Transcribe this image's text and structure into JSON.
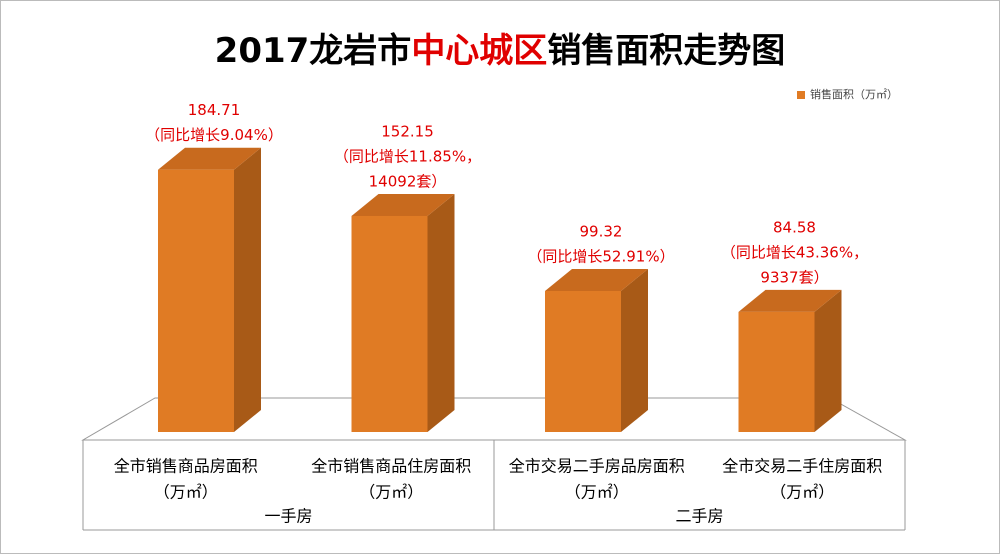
{
  "chart_data": {
    "type": "bar3d",
    "title": [
      "2017龙岩市",
      "中心城区",
      "销售面积走势图"
    ],
    "title_colors": [
      "#000000",
      "#e00000",
      "#000000"
    ],
    "categories": [
      [
        "全市销售商品房面积",
        "（万㎡）"
      ],
      [
        "全市销售商品住房面积",
        "（万㎡）"
      ],
      [
        "全市交易二手房品房面积",
        "（万㎡）"
      ],
      [
        "全市交易二手住房面积",
        "（万㎡）"
      ]
    ],
    "groups": [
      {
        "label": "一手房",
        "count": 2
      },
      {
        "label": "二手房",
        "count": 2
      }
    ],
    "series": [
      {
        "name": "销售面积（万㎡）",
        "color": "#e07b24",
        "values": [
          184.71,
          152.15,
          99.32,
          84.58
        ]
      }
    ],
    "annotations": [
      [
        "（同比增长9.04%）"
      ],
      [
        "（同比增长11.85%，",
        "14092套）"
      ],
      [
        "（同比增长52.91%）"
      ],
      [
        "（同比增长43.36%，",
        "9337套）"
      ]
    ],
    "label_color": "#e00000",
    "ylim": [
      0,
      200
    ],
    "legend": "top-right"
  }
}
